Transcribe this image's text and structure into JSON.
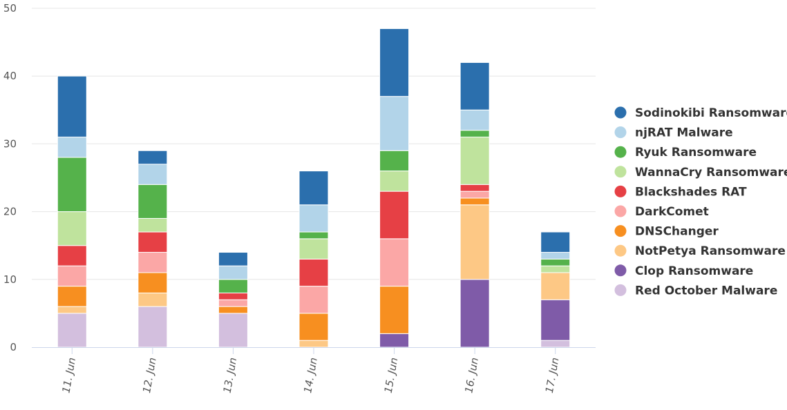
{
  "chart_data": {
    "type": "bar",
    "stacked": true,
    "title": "",
    "xlabel": "",
    "ylabel": "",
    "ylim": [
      0,
      50
    ],
    "yticks": [
      0,
      10,
      20,
      30,
      40,
      50
    ],
    "grid": true,
    "legend_position": "right",
    "categories": [
      "11. Jun",
      "12. Jun",
      "13. Jun",
      "14. Jun",
      "15. Jun",
      "16. Jun",
      "17. Jun"
    ],
    "series": [
      {
        "name": "Red October Malware",
        "color": "#d3bfde",
        "values": [
          5,
          6,
          5,
          0,
          0,
          0,
          1
        ]
      },
      {
        "name": "Clop Ransomware",
        "color": "#7f5ba8",
        "values": [
          0,
          0,
          0,
          0,
          2,
          10,
          6
        ]
      },
      {
        "name": "NotPetya Ransomware",
        "color": "#fdc885",
        "values": [
          1,
          2,
          0,
          1,
          0,
          11,
          4
        ]
      },
      {
        "name": "DNSChanger",
        "color": "#f78f20",
        "values": [
          3,
          3,
          1,
          4,
          7,
          1,
          0
        ]
      },
      {
        "name": "DarkComet",
        "color": "#fba7a6",
        "values": [
          3,
          3,
          1,
          4,
          7,
          1,
          0
        ]
      },
      {
        "name": "Blackshades RAT",
        "color": "#e64045",
        "values": [
          3,
          3,
          1,
          4,
          7,
          1,
          0
        ]
      },
      {
        "name": "WannaCry Ransomware",
        "color": "#bfe39d",
        "values": [
          5,
          2,
          0,
          3,
          3,
          7,
          1
        ]
      },
      {
        "name": "Ryuk Ransomware",
        "color": "#55b24b",
        "values": [
          8,
          5,
          2,
          1,
          3,
          1,
          1
        ]
      },
      {
        "name": "njRAT Malware",
        "color": "#b2d4e9",
        "values": [
          3,
          3,
          2,
          4,
          8,
          3,
          1
        ]
      },
      {
        "name": "Sodinokibi Ransomware",
        "color": "#2b6fad",
        "values": [
          9,
          2,
          2,
          5,
          10,
          7,
          3
        ]
      }
    ],
    "legend_order": [
      "Sodinokibi Ransomware",
      "njRAT Malware",
      "Ryuk Ransomware",
      "WannaCry Ransomware",
      "Blackshades RAT",
      "DarkComet",
      "DNSChanger",
      "NotPetya Ransomware",
      "Clop Ransomware",
      "Red October Malware"
    ]
  }
}
